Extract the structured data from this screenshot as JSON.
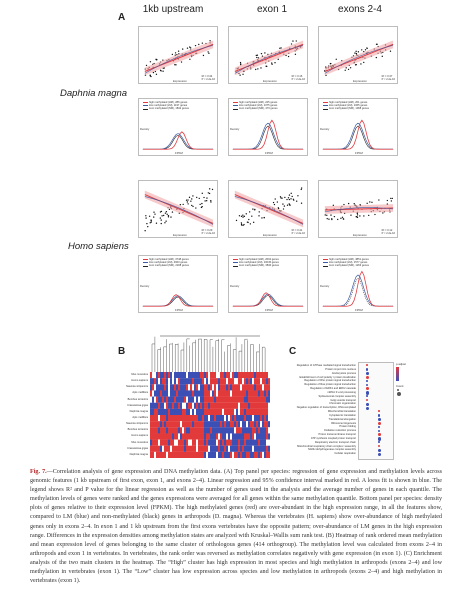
{
  "panel_letters": {
    "a": "A",
    "b": "B",
    "c": "C"
  },
  "columns": [
    "1kb upstream",
    "exon 1",
    "exons 2-4"
  ],
  "species": [
    "Daphnia magna",
    "Homo sapiens"
  ],
  "colors": {
    "red": "#e0393e",
    "blue": "#3b5ba5",
    "black": "#222222",
    "band": "#f2a8a8",
    "dot_red": "#e23a3a",
    "dot_blue": "#3b4fb5"
  },
  "regression_legend": [
    {
      "line1": "R² = 0.34",
      "line2": "P < 2.2e-16"
    },
    {
      "line1": "R² = 0.16",
      "line2": "P < 2.2e-16"
    },
    {
      "line1": "R² = 0.37",
      "line2": "P < 2.2e-16"
    },
    {
      "line1": "R² = 0.29",
      "line2": "P < 2.2e-16"
    },
    {
      "line1": "R² = 0.41",
      "line2": "P < 2.2e-16"
    },
    {
      "line1": "R² = 0.12",
      "line2": "P < 2.2e-16"
    }
  ],
  "density_legend": [
    [
      "high methylated (HM), 286 genes",
      "low methylated (LM), 1197 genes",
      "zero methylated (NM), 1842 genes"
    ],
    [
      "high methylated (HM), 225 genes",
      "low methylated (LM), 1075 genes",
      "zero methylated (NM), 473 genes"
    ],
    [
      "high methylated (HM), 201 genes",
      "low methylated (LM), 1065 genes",
      "zero methylated (NM), 1068 genes"
    ],
    [
      "high methylated (HM), 3748 genes",
      "low methylated (LM), 4663 genes",
      "zero methylated (NM), 2208 genes"
    ],
    [
      "high methylated (HM), 2604 genes",
      "low methylated (LM), 10045 genes",
      "zero methylated (NM), 3840 genes"
    ],
    [
      "high methylated (HM), 4851 genes",
      "low methylated (LM), 1577 genes",
      "zero methylated (NM), 1263 genes"
    ]
  ],
  "scatter_ylabel": "mean methylation level of genes",
  "scatter_xlabel": "Expression",
  "density_ylabel": "Density",
  "density_xlabel": "FPKM",
  "heatmap_rows": [
    "Mus musculus",
    "Homo sapiens",
    "Nasonia vitripennis",
    "Apis mellifera",
    "Bombus terrestris",
    "Crassostrea gigas",
    "Daphnia magna",
    "Apis mellifera",
    "Nasonia vitripennis",
    "Bombus terrestris",
    "Homo sapiens",
    "Mus musculus",
    "Crassostrea gigas",
    "Daphnia magna"
  ],
  "enrichment_terms": [
    "Regulation of GTPase mediated signal transduction",
    "Protein import into nucleus",
    "Endocytosis process",
    "Establishment of cell polarity / protein localization",
    "Regulation of Rho protein signal transduction",
    "Regulation of Ras protein signal transduction",
    "Regulation of ERK1 and ERK2 cascade",
    "mRNA 3'-end processing",
    "Spliceosomal complex assembly",
    "Golgi vesicle transport",
    "Chromatin organization",
    "Negative regulation of transcription, DNA-templated",
    "Mitochondrial translation",
    "Cytoplasmic translation",
    "Translational elongation",
    "Ribosome biogenesis",
    "Protein folding",
    "Oxidation reduction process",
    "Proton transmembrane transport",
    "ATP synthesis coupled proton transport",
    "Respiratory electron transport chain",
    "Mitochondrial respiratory chain complex I assembly",
    "NADH dehydrogenase complex assembly",
    "Cellular respiration"
  ],
  "enrichment_legend": [
    "p.adjust",
    "Count"
  ],
  "caption": {
    "fig_label": "Fig. 7.",
    "text": "—Correlation analysis of gene expression and DNA methylation data. (A) Top panel per species: regression of gene expression and methylation levels across genomic features (1 kb upstream of first exon, exon 1, and exons 2–4). Linear regression and 95% confidence interval marked in red. A loess fit is shown in blue. The legend shows R² and P value for the linear regression as well as the number of genes used in the analysis and the average number of genes in each quantile. The methylation levels of genes were ranked and the genes expressions were averaged for all genes within the same methylation quantile. Bottom panel per species: density plots of genes relative to their expression level (FPKM). The high methylated genes (red) are over-abundant in the high expression range, in all the features show, compared to LM (blue) and non-methylated (black) genes in arthropods (D. magna). Whereas the vertebrates (H. sapiens) show over-abundance of high methylated genes only in exons 2–4. In exon 1 and 1 kb upstream from the first exons vertebrates have the opposite pattern; over-abundance of LM genes in the high expression range. Differences in the expression densities among methylation states are analyzed with Kruskal–Wallis sum rank test. (B) Heatmap of rank ordered mean methylation and mean expression level of genes belonging to the same cluster of orthologous genes (414 orthogroup). The methylation level was calculated from exons 2–4 in arthropods and exon 1 in vertebrates. In vertebrates, the rank order was reversed as methylation correlates negatively with gene expression (in exon 1). (C) Enrichment analysis of the two main clusters in the heatmap. The “High” cluster has high expression in most species and high methylation in arthropods (exons 2–4) and low methylation in vertebrates (exon 1). The “Low” cluster has low expression across species and low methylation in arthropods (exons 2–4) and high methylation in vertebrates (exon 1)."
  }
}
